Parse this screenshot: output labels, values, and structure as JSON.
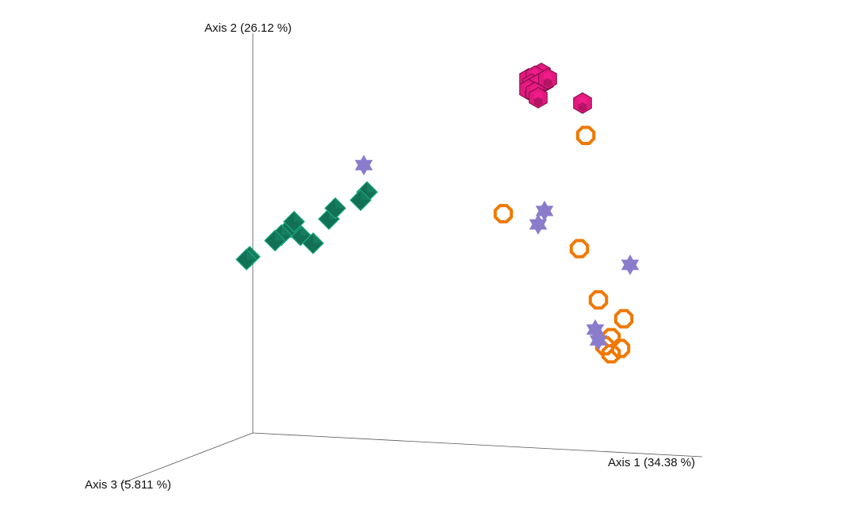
{
  "chart_data": {
    "type": "scatter",
    "projection": "3d",
    "axes": {
      "x": {
        "label": "Axis 1 (34.38 %)"
      },
      "y": {
        "label": "Axis 2 (26.12 %)"
      },
      "z": {
        "label": "Axis 3 (5.811 %)"
      }
    },
    "grid": false,
    "legend": "none",
    "series": [
      {
        "marker": "hexagon-solid",
        "color": "#e0197d",
        "points": [
          [
            0.72,
            0.96
          ],
          [
            0.68,
            0.94
          ],
          [
            0.7,
            0.95
          ],
          [
            0.73,
            0.93
          ],
          [
            0.69,
            0.92
          ],
          [
            0.71,
            0.92
          ],
          [
            0.74,
            0.94
          ],
          [
            0.68,
            0.9
          ],
          [
            0.7,
            0.89
          ],
          [
            0.71,
            0.87
          ],
          [
            0.85,
            0.85
          ]
        ]
      },
      {
        "marker": "ring",
        "color": "#f07800",
        "points": [
          [
            0.86,
            0.73
          ],
          [
            0.6,
            0.44
          ],
          [
            0.84,
            0.31
          ],
          [
            0.9,
            0.12
          ],
          [
            0.98,
            0.05
          ],
          [
            0.94,
            -0.02
          ],
          [
            0.92,
            -0.05
          ],
          [
            0.97,
            -0.06
          ],
          [
            0.94,
            -0.08
          ]
        ]
      },
      {
        "marker": "star6",
        "color": "#8b7ccb",
        "points": [
          [
            0.16,
            0.62
          ],
          [
            0.73,
            0.45
          ],
          [
            0.71,
            0.4
          ],
          [
            1.0,
            0.25
          ],
          [
            0.89,
            0.01
          ],
          [
            0.9,
            -0.03
          ]
        ]
      },
      {
        "marker": "diamond",
        "color": "#127055",
        "points": [
          [
            0.17,
            0.52
          ],
          [
            0.15,
            0.49
          ],
          [
            0.05,
            0.42
          ],
          [
            0.07,
            0.46
          ],
          [
            0.0,
            0.33
          ],
          [
            -0.04,
            0.36
          ],
          [
            -0.07,
            0.39
          ],
          [
            -0.06,
            0.41
          ],
          [
            -0.1,
            0.36
          ],
          [
            -0.12,
            0.34
          ],
          [
            -0.2,
            0.28
          ],
          [
            -0.21,
            0.27
          ]
        ]
      }
    ]
  }
}
